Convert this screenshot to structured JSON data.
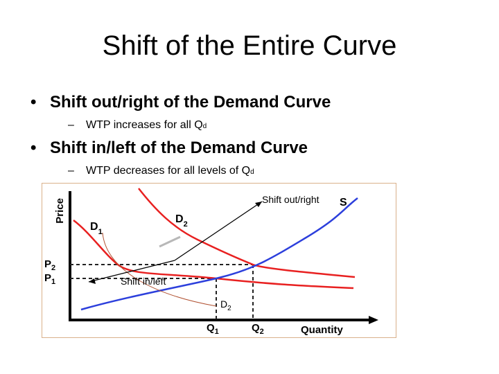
{
  "slide": {
    "title": "Shift of the Entire Curve",
    "bullets": [
      {
        "text": "Shift out/right of the Demand Curve",
        "sub": {
          "text": "WTP increases for all Q",
          "sup": "d"
        }
      },
      {
        "text": "Shift in/left of the Demand Curve",
        "sub": {
          "text": "WTP decreases for all levels of Q",
          "sup": "d"
        }
      }
    ],
    "bullet_symbol": "•",
    "dash_symbol": "–"
  },
  "figure": {
    "labels": {
      "price": "Price",
      "quantity": "Quantity",
      "supply": "S",
      "d1_main": "D",
      "d1_sub": "1",
      "d2_main": "D",
      "d2_sub": "2",
      "p2_main": "P",
      "p2_sub": "2",
      "p1_main": "P",
      "p1_sub": "1",
      "q1_main": "Q",
      "q1_sub": "1",
      "q2_main": "Q",
      "q2_sub": "2",
      "shift_out": "Shift out/right",
      "shift_in": "Shift in/left",
      "d2_extra_main": "D",
      "d2_extra_sub": "2"
    },
    "colors": {
      "supply": "#2c3fdc",
      "demand": "#e82020",
      "arc": "#b05030",
      "frame": "#d9b08a"
    }
  }
}
